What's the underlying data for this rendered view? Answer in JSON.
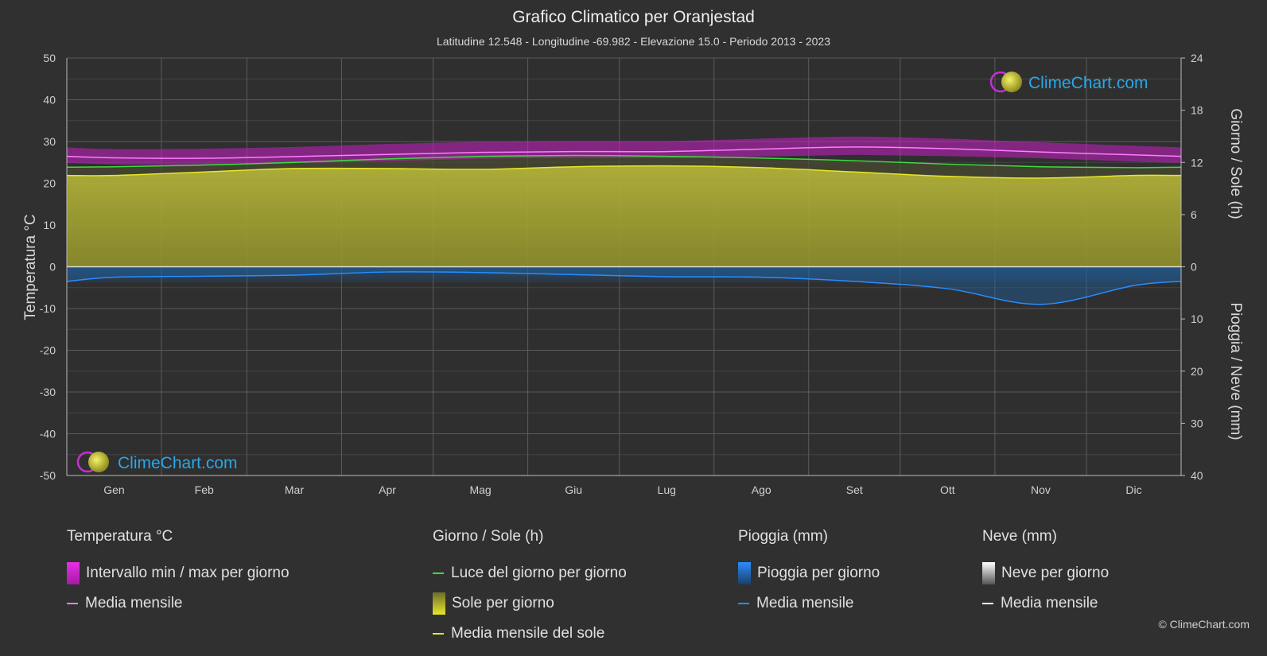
{
  "title": "Grafico Climatico per Oranjestad",
  "subtitle": "Latitudine 12.548 - Longitudine -69.982 - Elevazione 15.0 - Periodo 2013 - 2023",
  "watermark": "ClimeChart.com",
  "copyright": "© ClimeChart.com",
  "colors": {
    "background": "#303030",
    "temp_range": "#d81fd8",
    "temp_mean": "#ff7dff",
    "daylight": "#3ddc3d",
    "sunshine_fill": "#a8a832",
    "sunshine_mean": "#e6e62a",
    "rain": "#2a78c8",
    "rain_mean": "#2a8cff",
    "snow_mean": "#ffffff",
    "logo": "#2aa7e8"
  },
  "chart_data": {
    "type": "line",
    "months": [
      "Gen",
      "Feb",
      "Mar",
      "Apr",
      "Mag",
      "Giu",
      "Lug",
      "Ago",
      "Set",
      "Ott",
      "Nov",
      "Dic"
    ],
    "axes": {
      "left": {
        "label": "Temperatura °C",
        "min": -50,
        "max": 50,
        "ticks": [
          "50",
          "40",
          "30",
          "20",
          "10",
          "0",
          "-10",
          "-20",
          "-30",
          "-40",
          "-50"
        ]
      },
      "right_top": {
        "label": "Giorno / Sole (h)",
        "min": 0,
        "max": 24,
        "ticks": [
          "24",
          "18",
          "12",
          "6",
          "0"
        ]
      },
      "right_bottom": {
        "label": "Pioggia / Neve (mm)",
        "min": 0,
        "max": 40,
        "ticks": [
          "0",
          "10",
          "20",
          "30",
          "40"
        ]
      }
    },
    "series": [
      {
        "name": "Media mensile",
        "group": "Temperatura °C",
        "unit": "°C",
        "values": [
          26.1,
          26.0,
          26.4,
          26.9,
          27.4,
          27.6,
          27.6,
          28.2,
          28.7,
          28.3,
          27.5,
          26.8
        ]
      },
      {
        "name": "Intervallo min / max per giorno",
        "group": "Temperatura °C",
        "unit": "°C",
        "min": [
          24.5,
          24.4,
          24.8,
          25.3,
          25.9,
          26.1,
          26.0,
          26.4,
          26.8,
          26.5,
          26.0,
          25.2
        ],
        "max": [
          28.2,
          28.3,
          28.7,
          29.4,
          29.9,
          30.1,
          30.1,
          30.7,
          31.2,
          30.7,
          29.8,
          29.0
        ]
      },
      {
        "name": "Luce del giorno per giorno",
        "group": "Giorno / Sole (h)",
        "unit": "h",
        "values": [
          11.5,
          11.7,
          12.0,
          12.4,
          12.7,
          12.8,
          12.7,
          12.5,
          12.2,
          11.8,
          11.5,
          11.4
        ]
      },
      {
        "name": "Media mensile del sole",
        "group": "Giorno / Sole (h)",
        "unit": "h",
        "values": [
          10.5,
          10.9,
          11.3,
          11.3,
          11.2,
          11.5,
          11.6,
          11.4,
          10.9,
          10.4,
          10.2,
          10.5
        ]
      },
      {
        "name": "Media mensile",
        "group": "Pioggia (mm)",
        "unit": "mm",
        "values": [
          2.0,
          1.8,
          1.6,
          1.0,
          1.1,
          1.5,
          1.9,
          2.0,
          2.8,
          4.2,
          7.2,
          3.6
        ]
      },
      {
        "name": "Media mensile",
        "group": "Neve (mm)",
        "unit": "mm",
        "values": [
          0,
          0,
          0,
          0,
          0,
          0,
          0,
          0,
          0,
          0,
          0,
          0
        ]
      }
    ]
  },
  "legend": {
    "temperature": {
      "heading": "Temperatura °C",
      "range": "Intervallo min / max per giorno",
      "mean": "Media mensile"
    },
    "sun": {
      "heading": "Giorno / Sole (h)",
      "daylight": "Luce del giorno per giorno",
      "sunshine": "Sole per giorno",
      "sunshine_mean": "Media mensile del sole"
    },
    "rain": {
      "heading": "Pioggia (mm)",
      "daily": "Pioggia per giorno",
      "mean": "Media mensile"
    },
    "snow": {
      "heading": "Neve (mm)",
      "daily": "Neve per giorno",
      "mean": "Media mensile"
    }
  }
}
